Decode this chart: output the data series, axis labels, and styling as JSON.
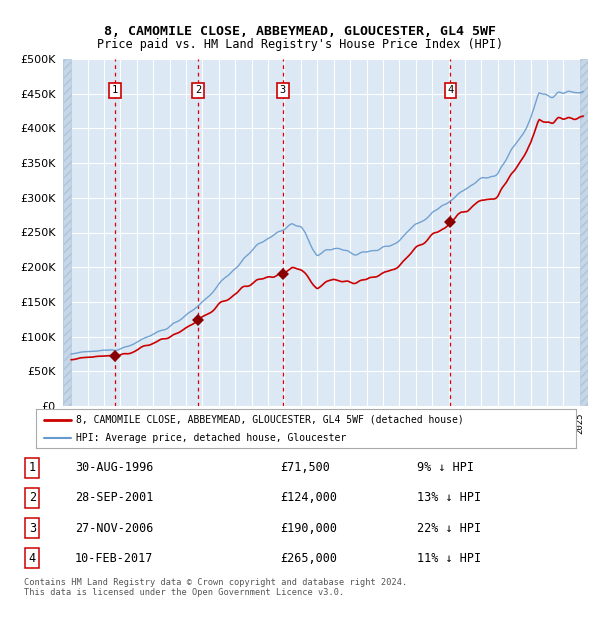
{
  "title": "8, CAMOMILE CLOSE, ABBEYMEAD, GLOUCESTER, GL4 5WF",
  "subtitle": "Price paid vs. HM Land Registry's House Price Index (HPI)",
  "ylim": [
    0,
    500000
  ],
  "yticks": [
    0,
    50000,
    100000,
    150000,
    200000,
    250000,
    300000,
    350000,
    400000,
    450000,
    500000
  ],
  "xlim_start": 1993.5,
  "xlim_end": 2025.5,
  "bg_color": "#dce9f5",
  "sale_dates": [
    1996.663,
    2001.741,
    2006.904,
    2017.115
  ],
  "sale_prices": [
    71500,
    124000,
    190000,
    265000
  ],
  "sale_labels": [
    "1",
    "2",
    "3",
    "4"
  ],
  "sale_date_strs": [
    "30-AUG-1996",
    "28-SEP-2001",
    "27-NOV-2006",
    "10-FEB-2017"
  ],
  "sale_price_strs": [
    "£71,500",
    "£124,000",
    "£190,000",
    "£265,000"
  ],
  "sale_hpi_strs": [
    "9% ↓ HPI",
    "13% ↓ HPI",
    "22% ↓ HPI",
    "11% ↓ HPI"
  ],
  "legend_label_red": "8, CAMOMILE CLOSE, ABBEYMEAD, GLOUCESTER, GL4 5WF (detached house)",
  "legend_label_blue": "HPI: Average price, detached house, Gloucester",
  "footer": "Contains HM Land Registry data © Crown copyright and database right 2024.\nThis data is licensed under the Open Government Licence v3.0.",
  "red_color": "#cc0000",
  "blue_color": "#6699cc",
  "marker_color": "#880000"
}
